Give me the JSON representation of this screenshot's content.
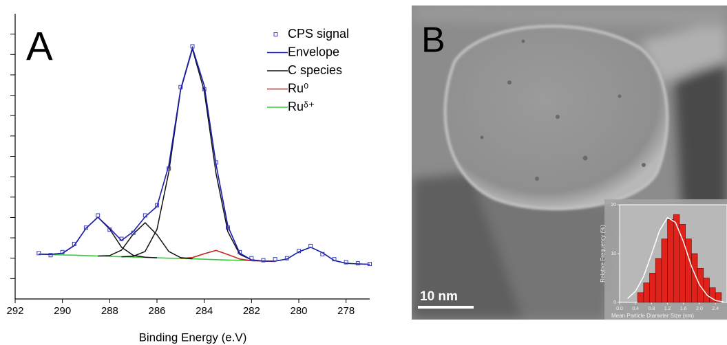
{
  "chart_data": [
    {
      "type": "line",
      "panel_label": "A",
      "xlabel": "Binding Energy (e.V)",
      "x": [
        291,
        290.5,
        290,
        289.5,
        289,
        288.5,
        288,
        287.5,
        287,
        286.5,
        286,
        285.5,
        285,
        284.5,
        284,
        283.5,
        283,
        282.5,
        282,
        281.5,
        281,
        280.5,
        280,
        279.5,
        279,
        278.5,
        278,
        277.5,
        277
      ],
      "xlim": [
        292,
        277
      ],
      "xticks": [
        292,
        290,
        288,
        286,
        284,
        282,
        280,
        278
      ],
      "ylim": [
        0,
        14
      ],
      "yticks": [
        1,
        2,
        3,
        4,
        5,
        6,
        7,
        8,
        9,
        10,
        11,
        12,
        13
      ],
      "legend": "upper right",
      "series": [
        {
          "name": "CPS signal",
          "color": "#3b3bc4",
          "marker": "square",
          "values": [
            2.25,
            2.15,
            2.3,
            2.7,
            3.5,
            4.1,
            3.4,
            2.95,
            3.25,
            4.1,
            4.6,
            6.4,
            10.4,
            12.4,
            10.3,
            6.7,
            3.5,
            2.3,
            2.0,
            1.9,
            1.95,
            2.0,
            2.35,
            2.6,
            2.2,
            1.95,
            1.8,
            1.75,
            1.72
          ]
        },
        {
          "name": "Envelope",
          "color": "#1c1ca8",
          "values": [
            2.2,
            2.19,
            2.24,
            2.62,
            3.47,
            4.01,
            3.47,
            2.87,
            3.31,
            4.03,
            4.54,
            6.56,
            10.28,
            12.33,
            10.47,
            6.61,
            3.57,
            2.25,
            1.92,
            1.86,
            1.86,
            1.96,
            2.31,
            2.54,
            2.27,
            1.89,
            1.75,
            1.72,
            1.7
          ]
        },
        {
          "name": "C species",
          "color": "#111111",
          "values": [
            [
              null,
              null,
              null,
              null,
              null,
              null,
              null,
              2.07,
              2.1,
              2.33,
              3.41,
              6.23,
              10.24,
              12.27,
              10.2,
              6.16,
              3.3,
              2.19,
              1.92,
              1.86,
              null,
              null,
              null,
              null,
              null,
              null,
              null,
              null,
              null
            ],
            [
              2.2,
              2.19,
              2.24,
              2.62,
              3.47,
              4.01,
              3.43,
              2.54,
              2.14,
              2.05,
              2.02,
              null,
              null,
              null,
              null,
              null,
              null,
              null,
              null,
              null,
              null,
              null,
              null,
              null,
              null,
              null,
              null,
              null,
              null
            ],
            [
              null,
              null,
              null,
              null,
              null,
              2.11,
              2.13,
              2.4,
              3.19,
              3.74,
              3.15,
              2.33,
              2.03,
              1.97,
              null,
              null,
              null,
              null,
              null,
              null,
              null,
              null,
              null,
              null,
              null,
              null,
              null,
              null,
              null
            ]
          ]
        },
        {
          "name": "Ru⁰",
          "color": "#c8281e",
          "values": [
            null,
            null,
            null,
            null,
            null,
            null,
            null,
            null,
            null,
            null,
            null,
            null,
            1.99,
            2.03,
            2.22,
            2.38,
            2.18,
            1.96,
            1.88,
            1.86,
            1.84,
            null,
            null,
            null,
            null,
            null,
            null,
            null,
            null
          ]
        },
        {
          "name": "Ruᵟ⁺",
          "color": "#33cc33",
          "values": [
            2.2,
            2.18,
            2.16,
            2.15,
            2.13,
            2.11,
            2.09,
            2.07,
            2.06,
            2.04,
            2.02,
            2.0,
            1.99,
            1.97,
            1.95,
            1.93,
            1.91,
            1.9,
            1.88,
            1.86,
            1.86,
            1.96,
            2.31,
            2.54,
            2.27,
            1.89,
            1.75,
            1.72,
            1.7
          ]
        }
      ]
    },
    {
      "type": "histogram",
      "xlabel": "Mean Particle Diameter Size (nm)",
      "ylabel": "Relative Frequency (%)",
      "bins": [
        0.45,
        0.6,
        0.75,
        0.9,
        1.05,
        1.2,
        1.35,
        1.5,
        1.65,
        1.8,
        1.95,
        2.1,
        2.25,
        2.4,
        2.55
      ],
      "counts": [
        2,
        4,
        6,
        9,
        13,
        17,
        18,
        16,
        13,
        10,
        7,
        5,
        3,
        2
      ],
      "color": "#e0221b",
      "fit": {
        "color": "#ffffff",
        "x": [
          0.2,
          0.4,
          0.6,
          0.8,
          1.0,
          1.2,
          1.4,
          1.6,
          1.8,
          2.0,
          2.2,
          2.4,
          2.6
        ],
        "values": [
          0.8,
          2.3,
          5.3,
          9.9,
          14.7,
          17.4,
          16.4,
          12.4,
          7.4,
          3.6,
          1.4,
          0.4,
          0.1
        ]
      },
      "xlim": [
        0,
        2.8
      ],
      "xticks": [
        {
          "value": 0,
          "label": "0.0"
        },
        0.4,
        0.8,
        1.2,
        1.6,
        {
          "value": 2,
          "label": "2.0"
        },
        2.4
      ],
      "ylim": [
        0,
        20
      ],
      "yticks": [
        0,
        10,
        20
      ]
    }
  ],
  "image": {
    "label": "B",
    "scale_bar": "10 nm"
  }
}
